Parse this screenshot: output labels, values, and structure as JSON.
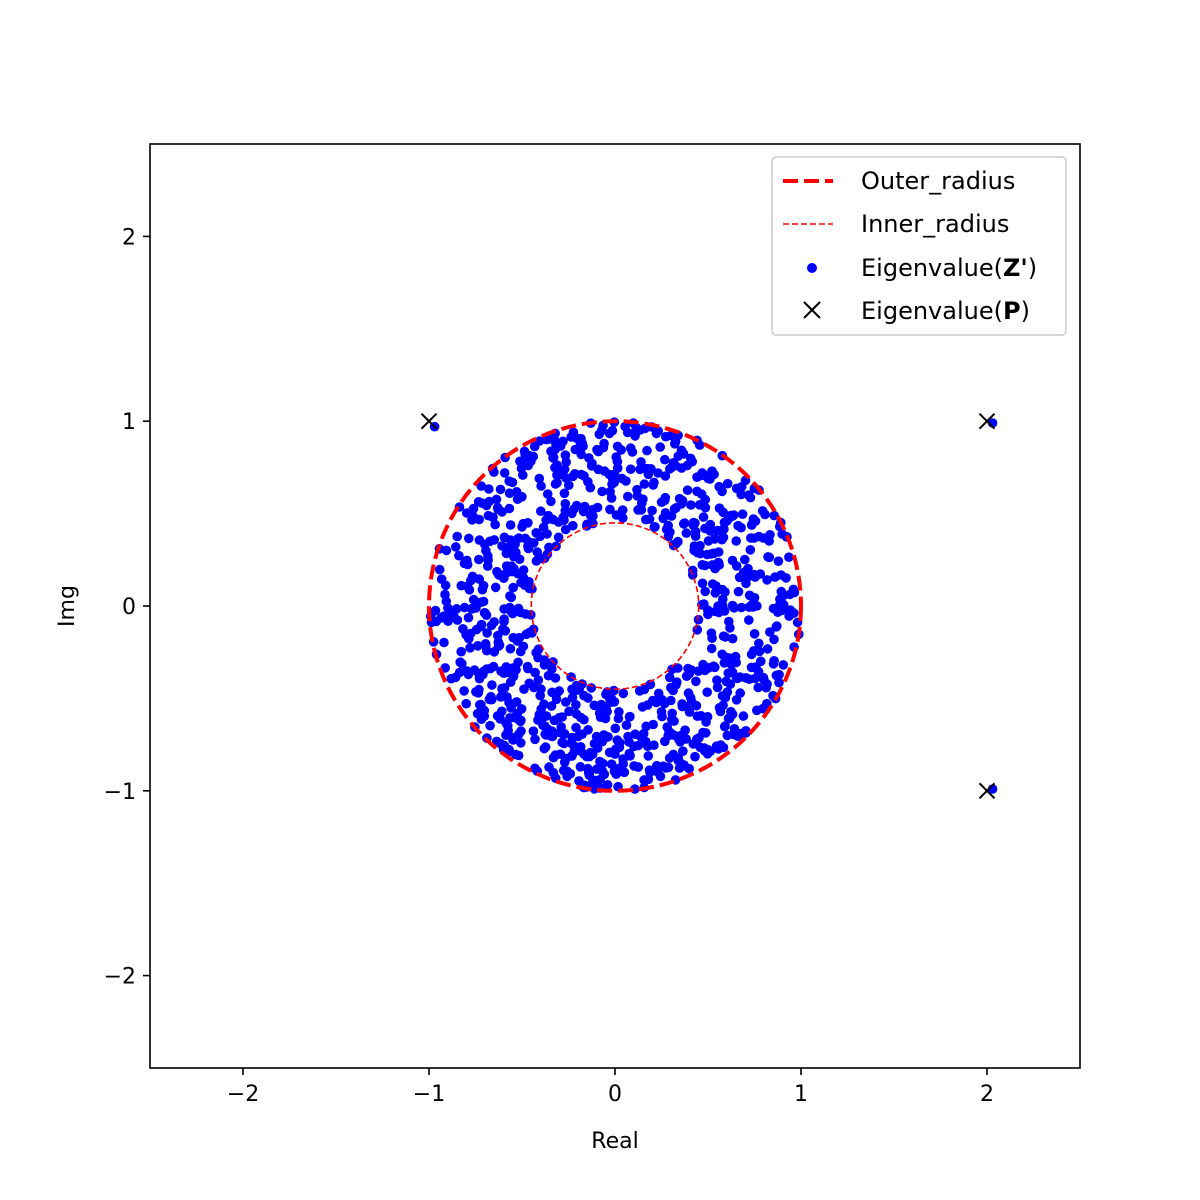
{
  "chart_data": {
    "type": "scatter",
    "title": "",
    "xlabel": "Real",
    "ylabel": "Img",
    "xlim": [
      -2.5,
      2.5
    ],
    "ylim": [
      -2.5,
      2.5
    ],
    "xticks": [
      -2,
      -1,
      0,
      1,
      2
    ],
    "yticks": [
      -2,
      -1,
      0,
      1,
      2
    ],
    "xtick_labels": [
      "−2",
      "−1",
      "0",
      "1",
      "2"
    ],
    "ytick_labels": [
      "−2",
      "−1",
      "0",
      "1",
      "2"
    ],
    "grid": false,
    "aspect": "equal",
    "legend_position": "upper right",
    "colors": {
      "outer_radius": "#ff0000",
      "inner_radius": "#ff0000",
      "eigenvalues_z": "#0000ff",
      "eigenvalues_p": "#000000"
    },
    "series": [
      {
        "name": "Outer_radius",
        "kind": "circle",
        "center": [
          0,
          0
        ],
        "radius": 1.0,
        "style": "thick dashed"
      },
      {
        "name": "Inner_radius",
        "kind": "circle",
        "center": [
          0,
          0
        ],
        "radius": 0.45,
        "style": "thin dashed"
      },
      {
        "name": "Eigenvalue(Z')",
        "kind": "scatter",
        "marker": "dot",
        "description_count": 1000,
        "distribution": {
          "inner_radius": 0.45,
          "outer_radius": 1.0,
          "note": "points fill the annulus between the two circles"
        },
        "isolated_points": [
          {
            "x": -0.97,
            "y": 0.97
          },
          {
            "x": 2.03,
            "y": 0.99
          },
          {
            "x": 2.03,
            "y": -0.99
          }
        ]
      },
      {
        "name": "Eigenvalue(P)",
        "kind": "scatter",
        "marker": "x",
        "points": [
          {
            "x": -1,
            "y": 1
          },
          {
            "x": 2,
            "y": 1
          },
          {
            "x": 2,
            "y": -1
          }
        ]
      }
    ],
    "legend": [
      {
        "label": "Outer_radius",
        "prefix": "Outer_radius",
        "bold": "",
        "suffix": "",
        "glyph": "thick-dash"
      },
      {
        "label": "Inner_radius",
        "prefix": "Inner_radius",
        "bold": "",
        "suffix": "",
        "glyph": "thin-dash"
      },
      {
        "label": "Eigenvalue(Z')",
        "prefix": "Eigenvalue(",
        "bold": "Z'",
        "suffix": ")",
        "glyph": "dot"
      },
      {
        "label": "Eigenvalue(P)",
        "prefix": "Eigenvalue(",
        "bold": "P",
        "suffix": ")",
        "glyph": "cross"
      }
    ]
  }
}
